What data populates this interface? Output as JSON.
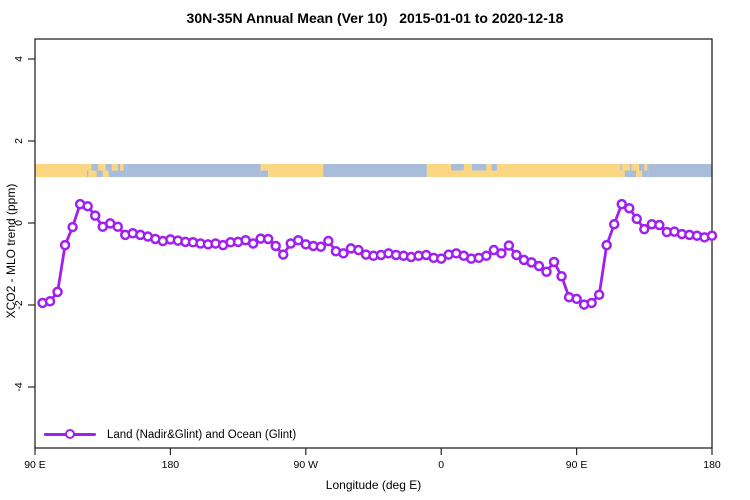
{
  "title": "30N-35N Annual Mean (Ver 10)   2015-01-01 to 2020-12-18",
  "legend": {
    "label": "Land (Nadir&Glint) and Ocean (Glint)"
  },
  "colors": {
    "series": "#A020F0",
    "ocean": "#A9BDDB",
    "land": "#FBD784",
    "axis": "#262626",
    "text": "#000000",
    "background": "#FFFFFF"
  },
  "chart_data": {
    "type": "line",
    "title": "30N-35N Annual Mean (Ver 10)   2015-01-01 to 2020-12-18",
    "xlabel": "Longitude (deg E)",
    "ylabel": "XCO2 - MLO trend (ppm)",
    "x_axis": {
      "min": 0,
      "max": 450,
      "note": "axis position in degrees east of 90E, wrapping 1.25 times around the globe",
      "ticks": [
        {
          "pos": 0,
          "label": "90 E"
        },
        {
          "pos": 90,
          "label": "180"
        },
        {
          "pos": 180,
          "label": "90 W"
        },
        {
          "pos": 270,
          "label": "0"
        },
        {
          "pos": 360,
          "label": "90 E"
        },
        {
          "pos": 450,
          "label": "180"
        }
      ]
    },
    "y_axis": {
      "min": -5.5,
      "max": 4.5,
      "ticks": [
        {
          "pos": -4,
          "label": "-4"
        },
        {
          "pos": -2,
          "label": "-2"
        },
        {
          "pos": 0,
          "label": "0"
        },
        {
          "pos": 2,
          "label": "2"
        },
        {
          "pos": 4,
          "label": "4"
        }
      ]
    },
    "series": [
      {
        "name": "Land (Nadir&Glint) and Ocean (Glint)",
        "marker": "open-circle",
        "x_deg": [
          5,
          10,
          15,
          20,
          25,
          30,
          35,
          40,
          45,
          50,
          55,
          60,
          65,
          70,
          75,
          80,
          85,
          90,
          95,
          100,
          105,
          110,
          115,
          120,
          125,
          130,
          135,
          140,
          145,
          150,
          155,
          160,
          165,
          170,
          175,
          180,
          185,
          190,
          195,
          200,
          205,
          210,
          215,
          220,
          225,
          230,
          235,
          240,
          245,
          250,
          255,
          260,
          265,
          270,
          275,
          280,
          285,
          290,
          295,
          300,
          305,
          310,
          315,
          320,
          325,
          330,
          335,
          340,
          345,
          350,
          355,
          360,
          365,
          370,
          375,
          380,
          385,
          390,
          395,
          400,
          405,
          410,
          415,
          420,
          425,
          430,
          435,
          440,
          445,
          450
        ],
        "values": [
          -1.95,
          -1.91,
          -1.68,
          -0.54,
          -0.1,
          0.46,
          0.41,
          0.18,
          -0.09,
          -0.01,
          -0.09,
          -0.29,
          -0.25,
          -0.29,
          -0.33,
          -0.39,
          -0.44,
          -0.4,
          -0.43,
          -0.46,
          -0.47,
          -0.5,
          -0.52,
          -0.5,
          -0.54,
          -0.47,
          -0.46,
          -0.42,
          -0.5,
          -0.38,
          -0.39,
          -0.56,
          -0.77,
          -0.5,
          -0.42,
          -0.52,
          -0.56,
          -0.58,
          -0.44,
          -0.69,
          -0.74,
          -0.62,
          -0.66,
          -0.77,
          -0.8,
          -0.78,
          -0.74,
          -0.78,
          -0.8,
          -0.83,
          -0.8,
          -0.78,
          -0.85,
          -0.87,
          -0.77,
          -0.74,
          -0.8,
          -0.87,
          -0.85,
          -0.8,
          -0.66,
          -0.74,
          -0.55,
          -0.78,
          -0.9,
          -0.96,
          -1.05,
          -1.19,
          -0.95,
          -1.3,
          -1.81,
          -1.85,
          -1.99,
          -1.95,
          -1.75,
          -0.54,
          -0.03,
          0.46,
          0.36,
          0.1,
          -0.15,
          -0.03,
          -0.05,
          -0.22,
          -0.21,
          -0.27,
          -0.29,
          -0.31,
          -0.35,
          -0.31
        ]
      }
    ],
    "land_ocean_band": {
      "ppm_top": 1.44,
      "ppm_bottom": 1.12,
      "segments": [
        {
          "region": "asia-land",
          "from": 0,
          "to": 34.5,
          "surface": "land"
        },
        {
          "region": "west-pacific-islands",
          "from": 34.5,
          "to": 61,
          "surface": "ocean"
        },
        {
          "region": "pacific",
          "from": 61,
          "to": 150,
          "surface": "ocean"
        },
        {
          "region": "america-coast",
          "from": 150,
          "to": 155,
          "surface": "ocean"
        },
        {
          "region": "north-america",
          "from": 155,
          "to": 191.5,
          "surface": "land"
        },
        {
          "region": "atlantic",
          "from": 191.5,
          "to": 260.5,
          "surface": "ocean"
        },
        {
          "region": "north-africa",
          "from": 260.5,
          "to": 307,
          "surface": "land"
        },
        {
          "region": "middle-east-asia",
          "from": 307,
          "to": 389,
          "surface": "land"
        },
        {
          "region": "east-asia-islands",
          "from": 389,
          "to": 407.5,
          "surface": "ocean"
        },
        {
          "region": "pacific-2",
          "from": 407.5,
          "to": 450,
          "surface": "ocean"
        }
      ],
      "overlays": [
        {
          "region": "japan-islands",
          "from": 34.5,
          "to": 37.5,
          "part": "top",
          "surface": "land"
        },
        {
          "region": "japan-islands",
          "from": 35.5,
          "to": 41,
          "part": "bottom",
          "surface": "land"
        },
        {
          "region": "japan-islands",
          "from": 42,
          "to": 47,
          "part": "top",
          "surface": "land"
        },
        {
          "region": "japan-islands",
          "from": 45,
          "to": 49,
          "part": "bottom",
          "surface": "land"
        },
        {
          "region": "japan-islands",
          "from": 51,
          "to": 55,
          "part": "top",
          "surface": "land"
        },
        {
          "region": "japan-islands",
          "from": 56.5,
          "to": 59,
          "part": "top",
          "surface": "land"
        },
        {
          "region": "california-coast",
          "from": 150,
          "to": 155,
          "part": "top",
          "surface": "land"
        },
        {
          "region": "mediterranean",
          "from": 276.5,
          "to": 285,
          "part": "top",
          "surface": "ocean"
        },
        {
          "region": "mediterranean",
          "from": 290.5,
          "to": 300,
          "part": "top",
          "surface": "ocean"
        },
        {
          "region": "mediterranean",
          "from": 303.5,
          "to": 307,
          "part": "top",
          "surface": "ocean"
        },
        {
          "region": "japan-islands-2",
          "from": 389,
          "to": 392,
          "part": "bottom",
          "surface": "land"
        },
        {
          "region": "japan-islands-2",
          "from": 390,
          "to": 395.5,
          "part": "top",
          "surface": "land"
        },
        {
          "region": "japan-islands-2",
          "from": 396.5,
          "to": 401.5,
          "part": "top",
          "surface": "land"
        },
        {
          "region": "japan-islands-2",
          "from": 399.5,
          "to": 403.5,
          "part": "bottom",
          "surface": "land"
        },
        {
          "region": "japan-islands-2",
          "from": 405,
          "to": 407,
          "part": "top",
          "surface": "land"
        }
      ]
    }
  }
}
